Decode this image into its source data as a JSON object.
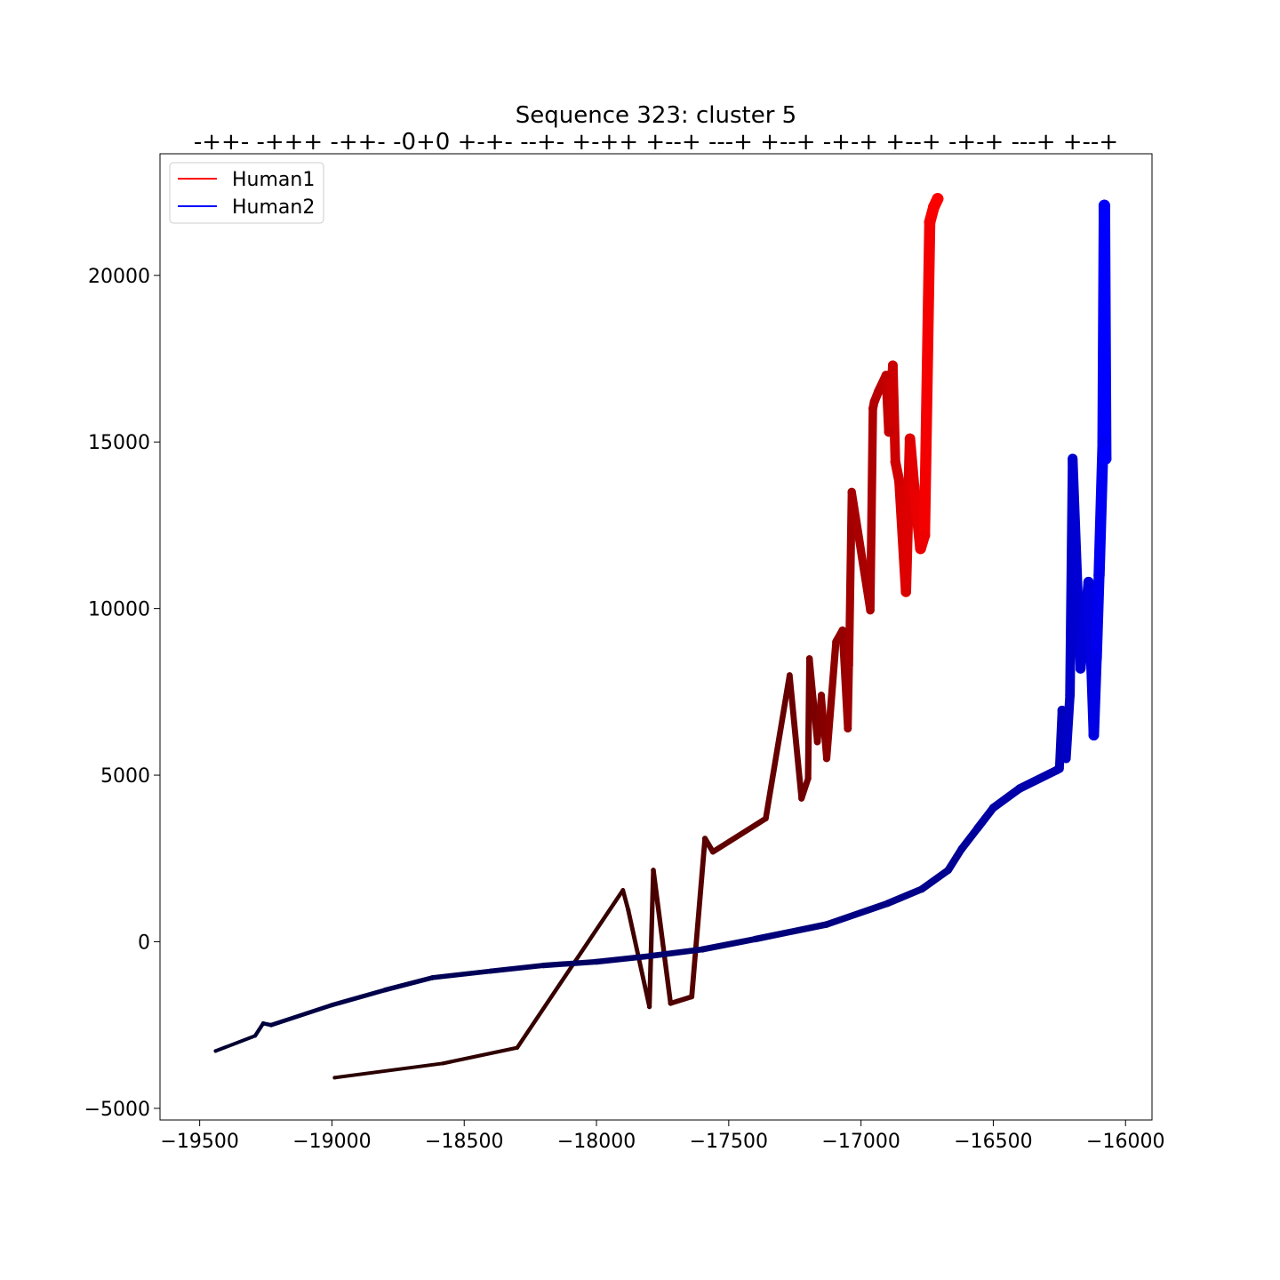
{
  "chart_data": {
    "type": "line",
    "title": "Sequence 323: cluster 5",
    "subtitle": "-++- -+++ -++- -0+0 +-+- --+- +-++ +--+ ---+ +--+ -+-+ +--+ -+-+ ---+ +--+",
    "xlabel": "",
    "ylabel": "",
    "xlim": [
      -19650,
      -15900
    ],
    "ylim": [
      -5350,
      23650
    ],
    "xticks": [
      -19500,
      -19000,
      -18500,
      -18000,
      -17500,
      -17000,
      -16500,
      -16000
    ],
    "xtick_labels": [
      "−19500",
      "−19000",
      "−18500",
      "−18000",
      "−17500",
      "−17000",
      "−16500",
      "−16000"
    ],
    "yticks": [
      -5000,
      0,
      5000,
      10000,
      15000,
      20000
    ],
    "ytick_labels": [
      "−5000",
      "0",
      "5000",
      "10000",
      "15000",
      "20000"
    ],
    "grid": false,
    "legend_position": "top-left",
    "series": [
      {
        "name": "Human1",
        "legend_color": "#ff0000",
        "color_start": "#2a0000",
        "color_end": "#ff0000",
        "x": [
          -18990,
          -18580,
          -18300,
          -17900,
          -17880,
          -17800,
          -17785,
          -17720,
          -17640,
          -17590,
          -17560,
          -17360,
          -17270,
          -17225,
          -17200,
          -17195,
          -17165,
          -17150,
          -17130,
          -17095,
          -17070,
          -17050,
          -17045,
          -17035,
          -16965,
          -16955,
          -16950,
          -16935,
          -16905,
          -16895,
          -16880,
          -16870,
          -16855,
          -16830,
          -16815,
          -16800,
          -16775,
          -16760,
          -16740,
          -16725,
          -16710
        ],
        "y": [
          -4080,
          -3650,
          -3180,
          1550,
          950,
          -1950,
          2150,
          -1850,
          -1650,
          3100,
          2700,
          3700,
          8000,
          4300,
          4900,
          8500,
          6000,
          7400,
          5500,
          9000,
          9350,
          6400,
          8300,
          13500,
          9950,
          16000,
          16200,
          16500,
          17000,
          15300,
          17300,
          14400,
          13800,
          10500,
          15100,
          13700,
          11800,
          12200,
          21600,
          22050,
          22300
        ]
      },
      {
        "name": "Human2",
        "legend_color": "#0000ff",
        "color_start": "#000030",
        "color_end": "#0000ff",
        "x": [
          -19440,
          -19290,
          -19260,
          -19230,
          -19000,
          -18800,
          -18620,
          -18400,
          -18200,
          -18000,
          -17800,
          -17600,
          -17400,
          -17130,
          -16900,
          -16770,
          -16670,
          -16620,
          -16560,
          -16500,
          -16400,
          -16260,
          -16250,
          -16240,
          -16225,
          -16210,
          -16200,
          -16170,
          -16140,
          -16120,
          -16110,
          -16100,
          -16085,
          -16080,
          -16075
        ],
        "y": [
          -3280,
          -2820,
          -2450,
          -2500,
          -1900,
          -1450,
          -1080,
          -880,
          -710,
          -600,
          -430,
          -230,
          80,
          520,
          1150,
          1580,
          2150,
          2780,
          3400,
          4020,
          4600,
          5150,
          5200,
          6950,
          5500,
          7400,
          14500,
          8200,
          10800,
          6200,
          8500,
          11000,
          15000,
          22100,
          14500
        ]
      }
    ]
  }
}
